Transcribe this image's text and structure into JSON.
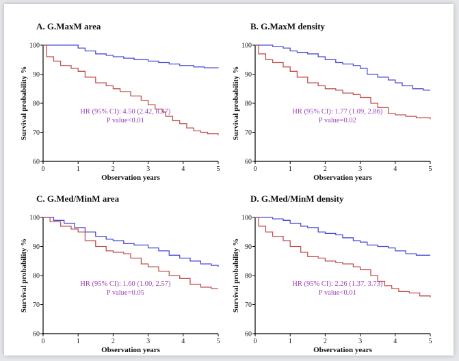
{
  "colors": {
    "high_curve": "#c0504d",
    "low_curve": "#4a4ad4",
    "annotation": "#9b3fb5",
    "axis": "#000000"
  },
  "chart_data": [
    {
      "type": "line",
      "title": "A. G.MaxM area",
      "xlabel": "Observation years",
      "ylabel": "Survival probability %",
      "xlim": [
        0,
        5
      ],
      "ylim": [
        60,
        100
      ],
      "x_ticks": [
        "0",
        "1",
        "2",
        "3",
        "4",
        "5"
      ],
      "y_ticks": [
        "60",
        "70",
        "80",
        "90",
        "100"
      ],
      "annotation": {
        "hr": "HR (95% CI): 4.50 (2.42, 8.37)",
        "p": "P value<0.01"
      },
      "series": [
        {
          "color": "#4a4ad4",
          "x": [
            0,
            0.5,
            1.0,
            1.2,
            1.5,
            1.8,
            2.0,
            2.3,
            2.6,
            3.0,
            3.3,
            3.6,
            3.9,
            4.3,
            4.6,
            5.0
          ],
          "y": [
            100,
            100,
            99,
            98,
            97,
            96.5,
            96,
            95.5,
            95,
            94.5,
            94,
            93.5,
            93,
            92.5,
            92.2,
            92
          ]
        },
        {
          "color": "#c0504d",
          "x": [
            0,
            0.1,
            0.3,
            0.5,
            0.8,
            1.0,
            1.2,
            1.5,
            1.8,
            2.0,
            2.2,
            2.5,
            2.8,
            3.0,
            3.2,
            3.4,
            3.5,
            3.7,
            3.9,
            4.1,
            4.3,
            4.5,
            4.7,
            5.0
          ],
          "y": [
            100,
            96,
            94.5,
            93,
            92,
            91,
            89,
            87,
            86,
            85,
            84,
            82.5,
            81,
            79.5,
            78,
            77,
            75.5,
            74,
            73,
            71.5,
            70.5,
            70,
            69.5,
            69
          ]
        }
      ]
    },
    {
      "type": "line",
      "title": "B. G.MaxM density",
      "xlabel": "Observation years",
      "ylabel": "Survival probability %",
      "xlim": [
        0,
        5
      ],
      "ylim": [
        60,
        100
      ],
      "x_ticks": [
        "0",
        "1",
        "2",
        "3",
        "4",
        "5"
      ],
      "y_ticks": [
        "60",
        "70",
        "80",
        "90",
        "100"
      ],
      "annotation": {
        "hr": "HR (95% CI): 1.77 (1.09, 2.86)",
        "p": "P value=0.02"
      },
      "series": [
        {
          "color": "#4a4ad4",
          "x": [
            0,
            0.5,
            0.8,
            1.0,
            1.2,
            1.5,
            1.8,
            2.0,
            2.3,
            2.5,
            2.8,
            3.0,
            3.2,
            3.5,
            3.8,
            4.0,
            4.2,
            4.5,
            4.8,
            5.0
          ],
          "y": [
            100,
            99.5,
            99,
            98,
            97.5,
            97,
            96,
            95,
            94,
            93.5,
            93,
            92,
            90,
            89,
            88,
            87,
            86,
            85,
            84.5,
            84.5
          ]
        },
        {
          "color": "#c0504d",
          "x": [
            0,
            0.1,
            0.3,
            0.5,
            0.8,
            1.0,
            1.2,
            1.5,
            1.8,
            2.0,
            2.3,
            2.5,
            2.8,
            3.0,
            3.3,
            3.5,
            3.8,
            4.0,
            4.3,
            4.6,
            5.0
          ],
          "y": [
            100,
            97,
            95,
            94,
            92.5,
            91,
            89,
            87,
            86,
            85,
            84.5,
            83.5,
            83,
            82,
            80,
            78.5,
            76.5,
            76,
            75.5,
            75,
            74.5
          ]
        }
      ]
    },
    {
      "type": "line",
      "title": "C. G.Med/MinM area",
      "xlabel": "Observation years",
      "ylabel": "Survival probability %",
      "xlim": [
        0,
        5
      ],
      "ylim": [
        60,
        100
      ],
      "x_ticks": [
        "0",
        "1",
        "2",
        "3",
        "4",
        "5"
      ],
      "y_ticks": [
        "60",
        "70",
        "80",
        "90",
        "100"
      ],
      "annotation": {
        "hr": "HR (95% CI): 1.60 (1.00, 2.57)",
        "p": "P value=0.05"
      },
      "series": [
        {
          "color": "#4a4ad4",
          "x": [
            0,
            0.3,
            0.6,
            0.9,
            1.2,
            1.5,
            1.8,
            2.0,
            2.3,
            2.6,
            3.0,
            3.3,
            3.6,
            3.9,
            4.2,
            4.5,
            4.8,
            5.0
          ],
          "y": [
            100,
            99,
            98,
            96.5,
            95,
            93.5,
            92.5,
            92,
            91,
            90.5,
            89.5,
            88.5,
            87,
            86,
            85,
            84,
            83.5,
            83
          ]
        },
        {
          "color": "#c0504d",
          "x": [
            0,
            0.2,
            0.5,
            0.8,
            1.0,
            1.2,
            1.5,
            1.8,
            2.0,
            2.3,
            2.5,
            2.8,
            3.0,
            3.3,
            3.6,
            3.9,
            4.2,
            4.5,
            4.8,
            5.0
          ],
          "y": [
            100,
            98.5,
            97,
            96,
            95,
            92,
            90,
            88.5,
            88,
            87.5,
            86,
            84,
            83,
            81.5,
            80,
            79,
            77,
            76,
            75.5,
            75.5
          ]
        }
      ]
    },
    {
      "type": "line",
      "title": "D. G.Med/MinM density",
      "xlabel": "Observation years",
      "ylabel": "Survival probability %",
      "xlim": [
        0,
        5
      ],
      "ylim": [
        60,
        100
      ],
      "x_ticks": [
        "0",
        "1",
        "2",
        "3",
        "4",
        "5"
      ],
      "y_ticks": [
        "60",
        "70",
        "80",
        "90",
        "100"
      ],
      "annotation": {
        "hr": "HR (95% CI): 2.26 (1.37, 3.73)",
        "p": "P value<0.01"
      },
      "series": [
        {
          "color": "#4a4ad4",
          "x": [
            0,
            0.5,
            0.8,
            1.0,
            1.3,
            1.5,
            1.8,
            2.0,
            2.3,
            2.5,
            2.8,
            3.0,
            3.2,
            3.5,
            3.8,
            4.0,
            4.3,
            4.6,
            5.0
          ],
          "y": [
            100,
            99.5,
            99,
            98,
            97,
            96.5,
            95,
            94.5,
            94,
            93,
            92,
            91.5,
            90.5,
            90,
            89.5,
            88.5,
            87.5,
            87,
            87
          ]
        },
        {
          "color": "#c0504d",
          "x": [
            0,
            0.1,
            0.3,
            0.5,
            0.8,
            1.0,
            1.3,
            1.5,
            1.8,
            2.0,
            2.3,
            2.5,
            2.8,
            3.0,
            3.3,
            3.5,
            3.7,
            3.9,
            4.1,
            4.4,
            4.7,
            5.0
          ],
          "y": [
            100,
            97,
            95,
            93.5,
            92,
            90,
            88,
            86.5,
            86,
            85,
            84.5,
            84,
            83,
            82,
            80,
            78,
            76.5,
            75.5,
            74.5,
            74,
            73,
            72.5
          ]
        }
      ]
    }
  ]
}
